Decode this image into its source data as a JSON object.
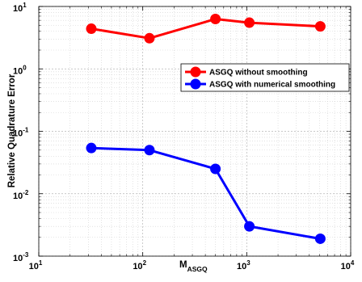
{
  "chart_data": {
    "type": "line",
    "title": "",
    "xlabel": "M",
    "xlabel_subscript": "ASGQ",
    "ylabel": "Relative Quadrature Error",
    "xscale": "log",
    "yscale": "log",
    "xlim": [
      10,
      10000
    ],
    "ylim": [
      0.001,
      10
    ],
    "x_tick_labels": [
      {
        "value": 10,
        "base": "10",
        "exp": "1"
      },
      {
        "value": 100,
        "base": "10",
        "exp": "2"
      },
      {
        "value": 1000,
        "base": "10",
        "exp": "3"
      },
      {
        "value": 10000,
        "base": "10",
        "exp": "4"
      }
    ],
    "y_tick_labels": [
      {
        "value": 10,
        "base": "10",
        "exp": "1"
      },
      {
        "value": 1,
        "base": "10",
        "exp": "0"
      },
      {
        "value": 0.1,
        "base": "10",
        "exp": "-1"
      },
      {
        "value": 0.01,
        "base": "10",
        "exp": "-2"
      },
      {
        "value": 0.001,
        "base": "10",
        "exp": "-3"
      }
    ],
    "grid": true,
    "minor_grid": true,
    "legend_position": "upper-right",
    "series": [
      {
        "name": "ASGQ without smoothing",
        "color": "#ff0000",
        "marker": "circle",
        "x": [
          32,
          116,
          500,
          1060,
          5100
        ],
        "y": [
          4.4,
          3.1,
          6.3,
          5.5,
          4.8
        ]
      },
      {
        "name": "ASGQ with numerical smoothing",
        "color": "#0000ff",
        "marker": "circle",
        "x": [
          32,
          116,
          500,
          1060,
          5100
        ],
        "y": [
          0.054,
          0.05,
          0.025,
          0.003,
          0.0019
        ]
      }
    ]
  }
}
